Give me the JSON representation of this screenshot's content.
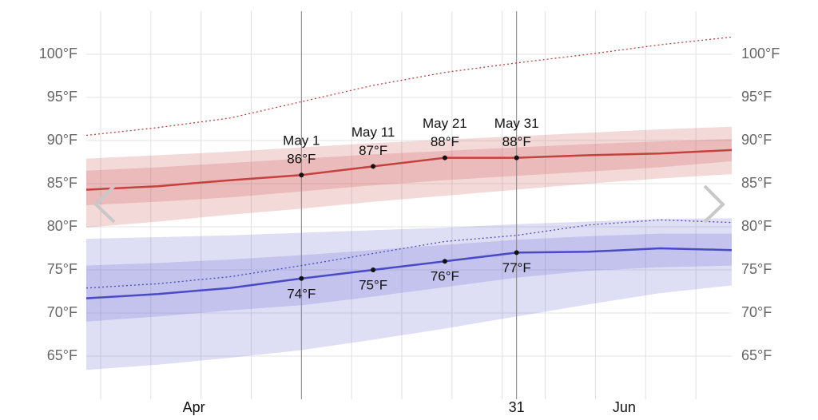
{
  "chart_data": {
    "type": "line",
    "x": [
      "Apr 1",
      "Apr 11",
      "Apr 21",
      "May 1",
      "May 11",
      "May 21",
      "May 31",
      "Jun 10",
      "Jun 20",
      "Jun 30"
    ],
    "xlim": [
      "Apr 1",
      "Jun 30"
    ],
    "xticks": [
      {
        "value": "Apr 16",
        "label": "Apr"
      },
      {
        "value": "May 31",
        "label": "31"
      },
      {
        "value": "Jun 15",
        "label": "Jun"
      }
    ],
    "xgrid": [
      "Apr 3",
      "Apr 10",
      "Apr 17",
      "Apr 24",
      "May 1",
      "May 8",
      "May 15",
      "May 22",
      "May 29",
      "May 31",
      "Jun 4",
      "Jun 11",
      "Jun 18",
      "Jun 25"
    ],
    "xlines": [
      "May 1",
      "May 31"
    ],
    "ylim": [
      60,
      105
    ],
    "yticks": [
      {
        "value": 65,
        "label": "65°F"
      },
      {
        "value": 70,
        "label": "70°F"
      },
      {
        "value": 75,
        "label": "75°F"
      },
      {
        "value": 80,
        "label": "80°F"
      },
      {
        "value": 85,
        "label": "85°F"
      },
      {
        "value": 90,
        "label": "90°F"
      },
      {
        "value": 95,
        "label": "95°F"
      },
      {
        "value": 100,
        "label": "100°F"
      }
    ],
    "grid": true,
    "bands": [
      {
        "color": "rgba(205,80,80,0.22)",
        "low": [
          79.9,
          80.6,
          81.4,
          82.1,
          82.9,
          83.6,
          84.3,
          85.0,
          85.6,
          86.1
        ],
        "high": [
          87.9,
          88.3,
          88.7,
          89.2,
          89.7,
          90.1,
          90.5,
          90.9,
          91.3,
          91.6
        ]
      },
      {
        "color": "rgba(205,80,80,0.22)",
        "low": [
          82.5,
          82.9,
          83.4,
          84.1,
          84.8,
          85.4,
          85.9,
          86.4,
          86.9,
          87.6
        ],
        "high": [
          86.5,
          86.9,
          87.4,
          87.9,
          88.4,
          88.8,
          89.2,
          89.6,
          89.9,
          90.2
        ]
      },
      {
        "color": "rgba(90,90,205,0.2)",
        "low": [
          63.4,
          64.0,
          64.8,
          65.7,
          66.9,
          68.2,
          69.6,
          71.0,
          72.3,
          73.2
        ],
        "high": [
          78.6,
          78.8,
          79.0,
          79.3,
          79.6,
          79.9,
          80.3,
          80.6,
          80.9,
          81.0
        ]
      },
      {
        "color": "rgba(90,90,205,0.2)",
        "low": [
          69.0,
          69.6,
          70.3,
          70.9,
          71.9,
          73.0,
          74.1,
          74.9,
          75.3,
          75.5
        ],
        "high": [
          75.5,
          75.8,
          76.2,
          76.7,
          77.3,
          77.9,
          78.5,
          78.9,
          79.2,
          79.2
        ]
      }
    ],
    "series": [
      {
        "color": "#c4413d",
        "style": "dotted",
        "values": [
          90.6,
          91.5,
          92.6,
          94.5,
          96.4,
          97.9,
          99.0,
          100.0,
          101.1,
          102.0
        ]
      },
      {
        "color": "#4a4ac4",
        "style": "dotted",
        "values": [
          72.9,
          73.4,
          74.2,
          75.5,
          76.9,
          78.3,
          79.0,
          80.2,
          80.8,
          80.5
        ]
      },
      {
        "color": "#c4413d",
        "style": "solid",
        "label_position": "above",
        "show_date": true,
        "values": [
          84.3,
          84.7,
          85.4,
          86,
          87,
          88,
          88,
          88.3,
          88.5,
          88.9
        ],
        "value_labels": [
          null,
          null,
          null,
          "86°F",
          "87°F",
          "88°F",
          "88°F",
          null,
          null,
          null
        ]
      },
      {
        "color": "#4a4ac4",
        "style": "solid",
        "label_position": "below",
        "values": [
          71.7,
          72.2,
          72.9,
          74,
          75,
          76,
          77,
          77.1,
          77.5,
          77.3
        ],
        "value_labels": [
          null,
          null,
          null,
          "74°F",
          "75°F",
          "76°F",
          "77°F",
          null,
          null,
          null
        ]
      }
    ]
  }
}
